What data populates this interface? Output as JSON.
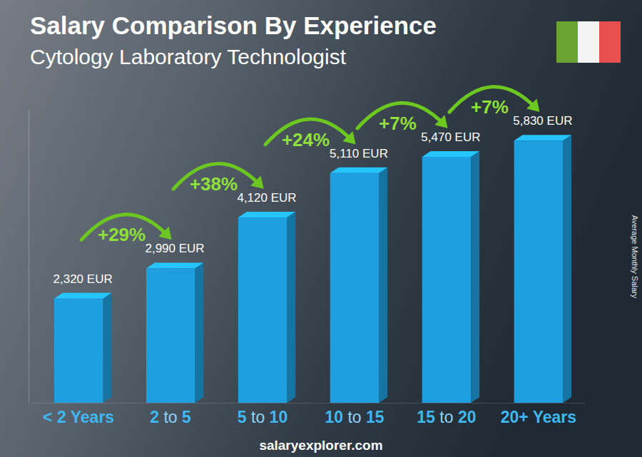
{
  "chart_data": {
    "type": "bar",
    "title": "Salary Comparison By Experience",
    "subtitle": "Cytology Laboratory Technologist",
    "ylabel": "Average Monthly Salary",
    "source": "salaryexplorer.com",
    "categories": [
      "< 2 Years",
      "2 to 5",
      "5 to 10",
      "10 to 15",
      "15 to 20",
      "20+ Years"
    ],
    "values": [
      2320,
      2990,
      4120,
      5110,
      5470,
      5830
    ],
    "value_labels": [
      "2,320 EUR",
      "2,990 EUR",
      "4,120 EUR",
      "5,110 EUR",
      "5,470 EUR",
      "5,830 EUR"
    ],
    "data_labels": true,
    "annotations": [
      "+29%",
      "+38%",
      "+24%",
      "+7%",
      "+7%"
    ],
    "color": "#1ea0e0",
    "ylim": [
      0,
      6500
    ],
    "tick_labels": "x",
    "grid": false
  }
}
